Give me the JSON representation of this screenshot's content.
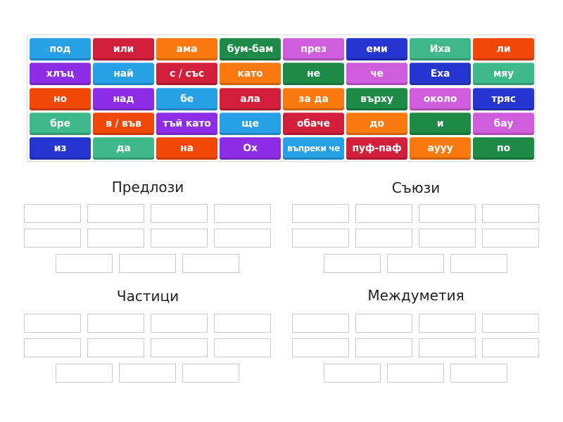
{
  "palette": {
    "blue": "#27a0e8",
    "red": "#d3203a",
    "orange": "#fb7a10",
    "dark_green": "#1e8a47",
    "pink": "#d05ddb",
    "navy": "#2536cf",
    "teal": "#3fb98a",
    "orange_red": "#f1480a",
    "purple": "#8d2ee6"
  },
  "tiles": [
    [
      {
        "label": "под",
        "color": "blue"
      },
      {
        "label": "или",
        "color": "red"
      },
      {
        "label": "ама",
        "color": "orange"
      },
      {
        "label": "бум-бам",
        "color": "dark_green"
      },
      {
        "label": "през",
        "color": "pink"
      },
      {
        "label": "еми",
        "color": "navy"
      },
      {
        "label": "Иха",
        "color": "teal"
      },
      {
        "label": "ли",
        "color": "orange_red"
      }
    ],
    [
      {
        "label": "хлъц",
        "color": "purple"
      },
      {
        "label": "най",
        "color": "blue"
      },
      {
        "label": "с / със",
        "color": "red"
      },
      {
        "label": "като",
        "color": "orange"
      },
      {
        "label": "не",
        "color": "dark_green"
      },
      {
        "label": "че",
        "color": "pink"
      },
      {
        "label": "Еха",
        "color": "navy"
      },
      {
        "label": "мяу",
        "color": "teal"
      }
    ],
    [
      {
        "label": "но",
        "color": "orange_red"
      },
      {
        "label": "над",
        "color": "purple"
      },
      {
        "label": "бе",
        "color": "blue"
      },
      {
        "label": "ала",
        "color": "red"
      },
      {
        "label": "за да",
        "color": "orange"
      },
      {
        "label": "върху",
        "color": "dark_green"
      },
      {
        "label": "около",
        "color": "pink"
      },
      {
        "label": "тряс",
        "color": "navy"
      }
    ],
    [
      {
        "label": "бре",
        "color": "teal"
      },
      {
        "label": "в / във",
        "color": "orange_red"
      },
      {
        "label": "тъй като",
        "color": "purple"
      },
      {
        "label": "ще",
        "color": "blue"
      },
      {
        "label": "обаче",
        "color": "red"
      },
      {
        "label": "до",
        "color": "orange"
      },
      {
        "label": "и",
        "color": "dark_green"
      },
      {
        "label": "бау",
        "color": "pink"
      }
    ],
    [
      {
        "label": "из",
        "color": "navy"
      },
      {
        "label": "да",
        "color": "teal"
      },
      {
        "label": "на",
        "color": "orange_red"
      },
      {
        "label": "Ох",
        "color": "purple"
      },
      {
        "label": "въпреки че",
        "color": "blue"
      },
      {
        "label": "пуф-паф",
        "color": "red"
      },
      {
        "label": "аууу",
        "color": "orange"
      },
      {
        "label": "по",
        "color": "dark_green"
      }
    ]
  ],
  "groups": [
    {
      "title": "Предлози"
    },
    {
      "title": "Съюзи"
    },
    {
      "title": "Частици"
    },
    {
      "title": "Междуметия"
    }
  ]
}
